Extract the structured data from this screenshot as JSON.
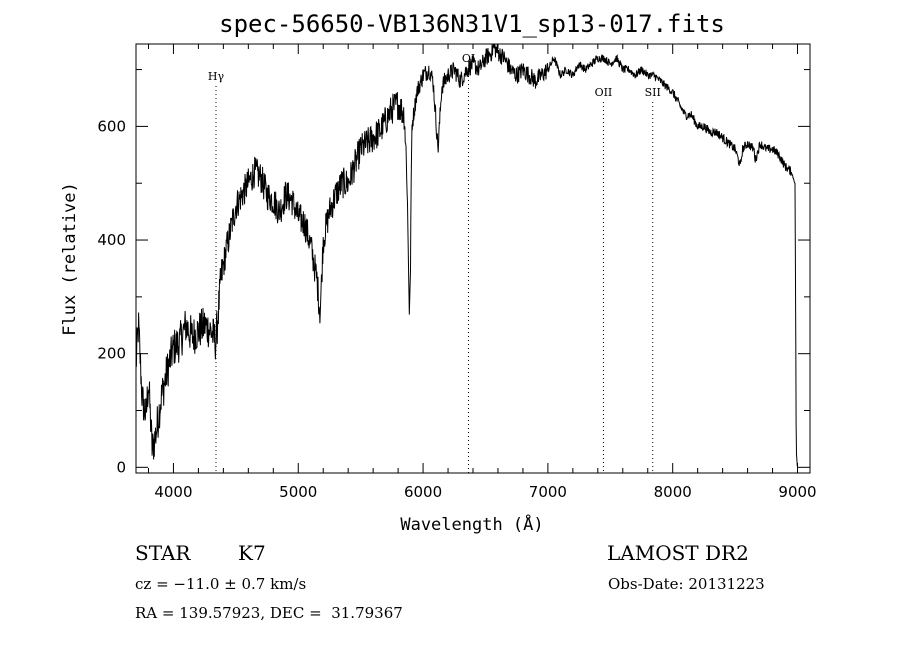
{
  "chart_data": {
    "type": "line",
    "title": "spec-56650-VB136N31V1_sp13-017.fits",
    "xlabel": "Wavelength (Å)",
    "ylabel": "Flux (relative)",
    "xlim": [
      3700,
      9100
    ],
    "ylim": [
      -10,
      745
    ],
    "xticks": [
      4000,
      5000,
      6000,
      7000,
      8000,
      9000
    ],
    "yticks": [
      0,
      200,
      400,
      600
    ],
    "grid": false,
    "spectrum_anchors": {
      "x": [
        3700,
        3720,
        3750,
        3780,
        3800,
        3830,
        3860,
        3900,
        3950,
        4000,
        4050,
        4100,
        4150,
        4200,
        4250,
        4300,
        4340,
        4380,
        4420,
        4460,
        4500,
        4550,
        4600,
        4650,
        4700,
        4750,
        4800,
        4850,
        4900,
        4950,
        5000,
        5050,
        5100,
        5150,
        5175,
        5200,
        5250,
        5300,
        5350,
        5400,
        5450,
        5500,
        5550,
        5600,
        5650,
        5700,
        5750,
        5800,
        5850,
        5870,
        5890,
        5896,
        5910,
        5950,
        6000,
        6050,
        6080,
        6100,
        6120,
        6150,
        6200,
        6250,
        6300,
        6350,
        6400,
        6450,
        6500,
        6550,
        6563,
        6600,
        6650,
        6700,
        6750,
        6800,
        6850,
        6900,
        6950,
        7000,
        7050,
        7100,
        7150,
        7200,
        7250,
        7300,
        7350,
        7400,
        7450,
        7500,
        7550,
        7600,
        7650,
        7700,
        7750,
        7800,
        7850,
        7900,
        7950,
        8000,
        8050,
        8100,
        8150,
        8200,
        8250,
        8300,
        8350,
        8400,
        8450,
        8500,
        8542,
        8560,
        8600,
        8650,
        8662,
        8700,
        8750,
        8800,
        8850,
        8900,
        8950,
        8980,
        8990,
        9000
      ],
      "y": [
        180,
        250,
        120,
        90,
        150,
        30,
        60,
        120,
        170,
        210,
        220,
        250,
        230,
        240,
        250,
        240,
        220,
        330,
        380,
        420,
        460,
        480,
        500,
        520,
        510,
        480,
        470,
        450,
        480,
        470,
        440,
        430,
        390,
        330,
        270,
        400,
        450,
        480,
        500,
        500,
        530,
        560,
        570,
        580,
        590,
        610,
        630,
        640,
        620,
        520,
        280,
        300,
        600,
        660,
        690,
        700,
        680,
        620,
        560,
        670,
        690,
        700,
        680,
        700,
        710,
        700,
        720,
        730,
        740,
        730,
        720,
        700,
        690,
        700,
        690,
        680,
        690,
        700,
        720,
        690,
        700,
        690,
        710,
        700,
        710,
        720,
        720,
        710,
        720,
        700,
        700,
        690,
        700,
        690,
        690,
        680,
        670,
        660,
        640,
        620,
        620,
        600,
        600,
        590,
        590,
        580,
        570,
        560,
        530,
        560,
        570,
        560,
        540,
        570,
        560,
        560,
        550,
        530,
        520,
        500,
        30,
        -5
      ]
    },
    "spectral_lines": [
      {
        "label": "Hγ",
        "wavelength": 4341
      },
      {
        "label": "OI",
        "wavelength": 6364
      },
      {
        "label": "OII",
        "wavelength": 7445
      },
      {
        "label": "SII",
        "wavelength": 7840
      }
    ]
  },
  "info": {
    "object_class": "STAR",
    "subclass": "K7",
    "survey": "LAMOST DR2",
    "redshift": "cz = −11.0 ± 0.7 km/s",
    "obs_date": "Obs-Date: 20131223",
    "coordinates": "RA = 139.57923, DEC =  31.79367"
  }
}
